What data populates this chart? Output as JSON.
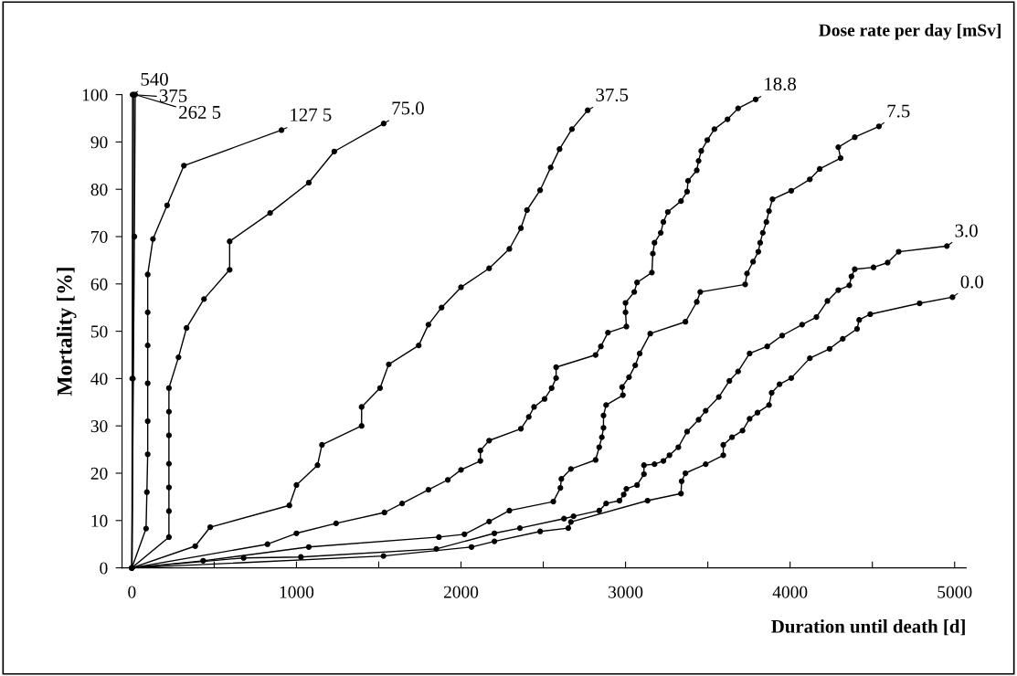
{
  "chart_data": {
    "type": "line",
    "xlabel": "Duration until death [d]",
    "ylabel": "Mortality [%]",
    "legend_title": "Dose rate per day [mSv]",
    "xlim": [
      -60,
      5070
    ],
    "ylim": [
      0,
      100
    ],
    "xticks": [
      0,
      {
        "value": 500,
        "label": null
      },
      1000,
      {
        "value": 1500,
        "label": null
      },
      2000,
      {
        "value": 2500,
        "label": null
      },
      3000,
      {
        "value": 3500,
        "label": null
      },
      4000,
      {
        "value": 4500,
        "label": null
      },
      5000
    ],
    "yticks": [
      0,
      10,
      20,
      30,
      40,
      50,
      60,
      70,
      80,
      90,
      100
    ],
    "grid": false,
    "legend": "top right",
    "marker": "circle",
    "line_style": "solid",
    "series": [
      {
        "name": "540",
        "color": "#000000",
        "x": [
          0,
          2,
          4
        ],
        "values": [
          0,
          40,
          100
        ]
      },
      {
        "name": "375",
        "color": "#000000",
        "x": [
          0,
          6,
          10
        ],
        "values": [
          0,
          40,
          100
        ]
      },
      {
        "name": "262 5",
        "color": "#000000",
        "x": [
          0,
          15,
          20
        ],
        "values": [
          0,
          70,
          100
        ]
      },
      {
        "name": "127 5",
        "color": "#000000",
        "x": [
          0,
          86,
          91,
          96,
          96,
          96,
          96,
          96,
          96,
          128,
          214,
          316,
          909
        ],
        "values": [
          0,
          8.3,
          16,
          24,
          31,
          39,
          47,
          54,
          62,
          69.5,
          76.6,
          85,
          92.5
        ]
      },
      {
        "name": "75.0",
        "color": "#000000",
        "x": [
          0,
          225,
          225,
          225,
          225,
          225,
          225,
          225,
          283,
          332,
          438,
          594,
          594,
          840,
          1075,
          1230,
          1530
        ],
        "values": [
          0,
          6.5,
          12,
          17,
          22,
          28,
          33,
          38,
          44.5,
          50.7,
          56.8,
          63,
          69,
          75,
          81.4,
          88,
          93.9
        ]
      },
      {
        "name": "37.5",
        "color": "#000000",
        "x": [
          0,
          385,
          476,
          957,
          1000,
          1128,
          1155,
          1396,
          1396,
          1508,
          1561,
          1743,
          1802,
          1882,
          2000,
          2171,
          2294,
          2364,
          2401,
          2481,
          2545,
          2599,
          2674,
          2770
        ],
        "values": [
          0,
          4.6,
          8.6,
          13.2,
          17.5,
          21.7,
          26,
          30,
          34,
          38,
          43,
          47,
          51.4,
          55,
          59.3,
          63.3,
          67.4,
          71.8,
          75.6,
          79.8,
          84.6,
          88.5,
          92.7,
          96.7
        ]
      },
      {
        "name": "18.8",
        "color": "#000000",
        "x": [
          0,
          824,
          1000,
          1241,
          1535,
          1642,
          1802,
          1920,
          2000,
          2118,
          2118,
          2171,
          2364,
          2412,
          2444,
          2508,
          2551,
          2578,
          2578,
          2818,
          2850,
          2893,
          3005,
          3000,
          3000,
          3053,
          3070,
          3160,
          3166,
          3176,
          3214,
          3230,
          3257,
          3337,
          3374,
          3380,
          3433,
          3444,
          3460,
          3497,
          3540,
          3620,
          3684,
          3791
        ],
        "values": [
          0,
          5,
          7.3,
          9.4,
          11.7,
          13.6,
          16.5,
          18.6,
          20.7,
          22.6,
          24.8,
          26.9,
          29.4,
          31.9,
          34,
          35.7,
          38,
          40.1,
          42.4,
          45,
          46.8,
          49.7,
          51,
          54,
          56,
          58.3,
          60.3,
          62.4,
          66.4,
          68.7,
          70.8,
          73.1,
          75.2,
          77.5,
          79.5,
          81.8,
          84,
          86,
          88.1,
          90.4,
          92.7,
          94.8,
          97.1,
          99
        ]
      },
      {
        "name": "7.5",
        "color": "#000000",
        "x": [
          0,
          433,
          1075,
          1866,
          2021,
          2171,
          2294,
          2561,
          2604,
          2610,
          2668,
          2818,
          2840,
          2856,
          2866,
          2866,
          2882,
          2984,
          2979,
          3021,
          3059,
          3086,
          3150,
          3364,
          3433,
          3454,
          3727,
          3738,
          3775,
          3807,
          3818,
          3834,
          3856,
          3872,
          3893,
          4007,
          4120,
          4180,
          4307,
          4293,
          4393,
          4540
        ],
        "values": [
          0,
          1.5,
          4.4,
          6.5,
          7.1,
          9.8,
          12.1,
          14,
          16.9,
          18.8,
          20.9,
          22.8,
          25.5,
          27.6,
          29.6,
          32.2,
          34.4,
          36.5,
          38.2,
          40.3,
          42.8,
          45.3,
          49.5,
          52,
          56.2,
          58.3,
          59.9,
          62.2,
          64.7,
          66.8,
          68.7,
          70.8,
          73.1,
          75.4,
          77.9,
          79.7,
          82.1,
          84.3,
          86.6,
          88.9,
          91,
          93.3
        ]
      },
      {
        "name": "3.0",
        "color": "#000000",
        "x": [
          0,
          679,
          1027,
          1850,
          2203,
          2358,
          2626,
          2684,
          2840,
          2882,
          2963,
          2989,
          3005,
          3070,
          3112,
          3112,
          3176,
          3230,
          3267,
          3321,
          3374,
          3444,
          3487,
          3567,
          3631,
          3684,
          3754,
          3861,
          3952,
          4073,
          4160,
          4227,
          4293,
          4360,
          4373,
          4393,
          4507,
          4593,
          4660,
          4953
        ],
        "values": [
          0,
          2.1,
          2.3,
          4,
          7.3,
          8.4,
          10.4,
          10.9,
          12.1,
          13.6,
          14.2,
          15.5,
          16.7,
          17.5,
          19.8,
          21.7,
          21.9,
          22.6,
          23.8,
          25.5,
          28.8,
          31.3,
          33.2,
          36.1,
          39.5,
          41.5,
          45.3,
          46.8,
          49.1,
          51.4,
          53,
          56.4,
          58.7,
          59.7,
          61.6,
          63.1,
          63.5,
          64.5,
          66.8,
          68
        ]
      },
      {
        "name": "0.0",
        "color": "#000000",
        "x": [
          0,
          1529,
          2064,
          2203,
          2481,
          2652,
          2668,
          3134,
          3337,
          3341,
          3364,
          3487,
          3594,
          3594,
          3647,
          3711,
          3754,
          3802,
          3872,
          3888,
          3936,
          4007,
          4120,
          4240,
          4320,
          4407,
          4420,
          4487,
          4787,
          4987
        ],
        "values": [
          0,
          2.5,
          4.4,
          5.6,
          7.7,
          8.4,
          9.7,
          14.2,
          15.7,
          18.3,
          20,
          21.9,
          23.8,
          26,
          27.6,
          29,
          31.5,
          32.8,
          34.4,
          37,
          38.8,
          40.1,
          44.3,
          46.3,
          48.4,
          50.5,
          52.4,
          53.6,
          55.9,
          57.2
        ]
      }
    ]
  }
}
